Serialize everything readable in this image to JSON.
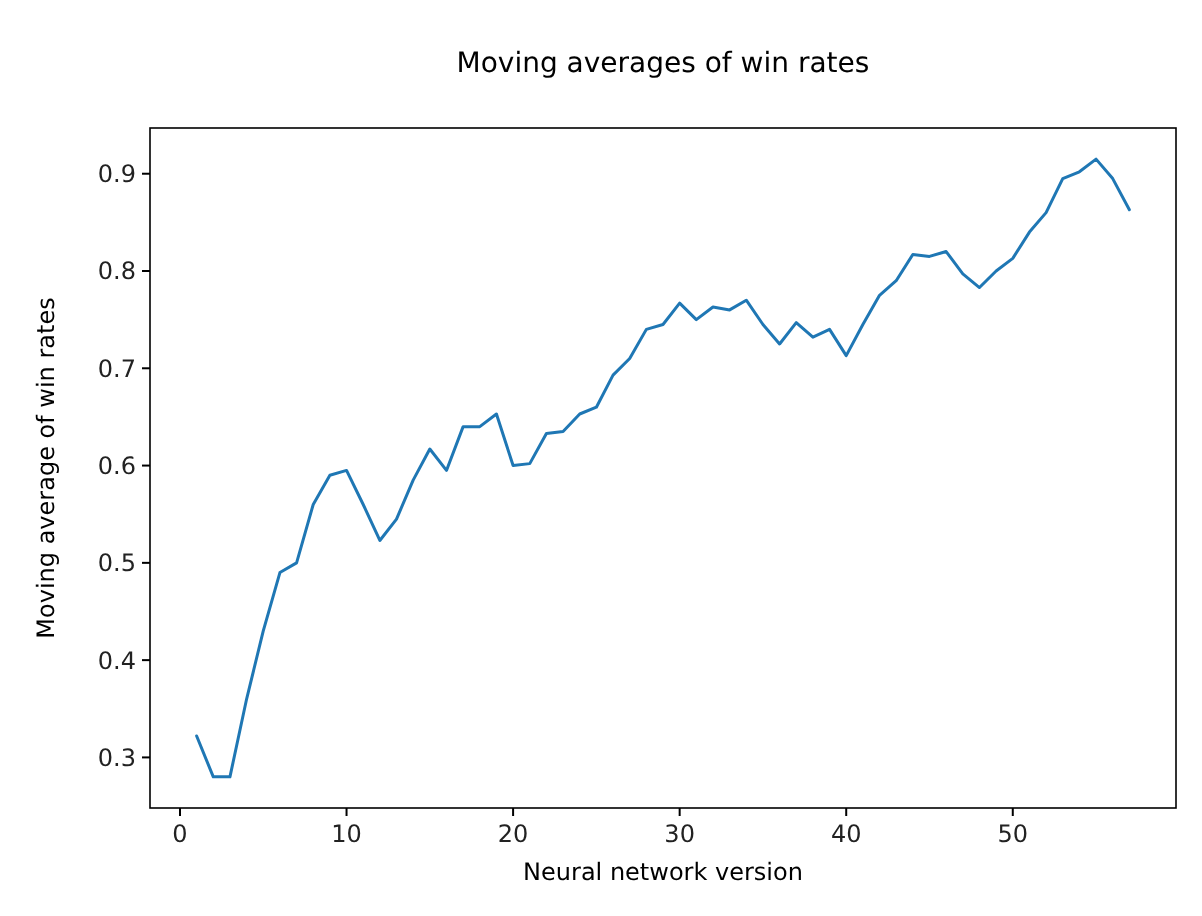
{
  "chart_data": {
    "type": "line",
    "title": "Moving averages of win rates",
    "xlabel": "Neural network version",
    "ylabel": "Moving average of win rates",
    "x": [
      1,
      2,
      3,
      4,
      5,
      6,
      7,
      8,
      9,
      10,
      11,
      12,
      13,
      14,
      15,
      16,
      17,
      18,
      19,
      20,
      21,
      22,
      23,
      24,
      25,
      26,
      27,
      28,
      29,
      30,
      31,
      32,
      33,
      34,
      35,
      36,
      37,
      38,
      39,
      40,
      41,
      42,
      43,
      44,
      45,
      46,
      47,
      48,
      49,
      50,
      51,
      52,
      53,
      54,
      55,
      56,
      57
    ],
    "series": [
      {
        "color": "#1f77b4",
        "values": [
          0.322,
          0.28,
          0.28,
          0.36,
          0.43,
          0.49,
          0.5,
          0.56,
          0.59,
          0.595,
          0.56,
          0.523,
          0.545,
          0.585,
          0.617,
          0.595,
          0.64,
          0.64,
          0.653,
          0.6,
          0.602,
          0.633,
          0.635,
          0.653,
          0.66,
          0.693,
          0.71,
          0.74,
          0.745,
          0.767,
          0.75,
          0.763,
          0.76,
          0.77,
          0.745,
          0.725,
          0.747,
          0.732,
          0.74,
          0.713,
          0.745,
          0.775,
          0.79,
          0.817,
          0.815,
          0.82,
          0.797,
          0.783,
          0.8,
          0.813,
          0.84,
          0.86,
          0.895,
          0.902,
          0.915,
          0.895,
          0.863
        ]
      }
    ],
    "xlim": [
      -1.8,
      59.8
    ],
    "xticks": [
      0,
      10,
      20,
      30,
      40,
      50
    ],
    "ylim": [
      0.248,
      0.947
    ],
    "yticks": [
      0.3,
      0.4,
      0.5,
      0.6,
      0.7,
      0.8,
      0.9
    ],
    "grid": false,
    "marker": "none",
    "line_style": "solid"
  }
}
